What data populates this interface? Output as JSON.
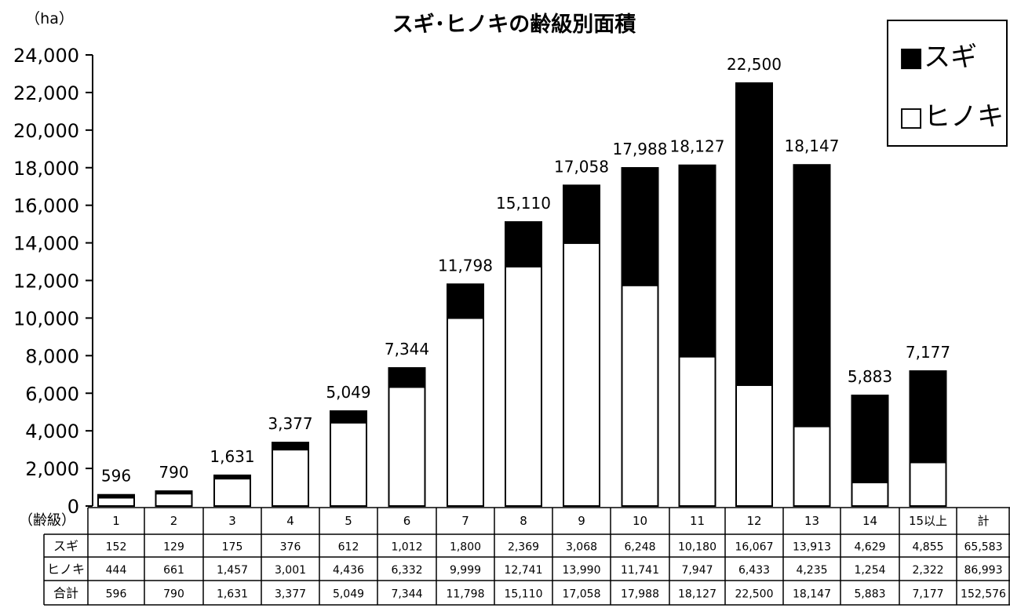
{
  "chart_data": {
    "type": "bar",
    "stacked": true,
    "title": "スギ･ヒノキの齢級別面積",
    "unit_label": "（ha）",
    "categories": [
      "1",
      "2",
      "3",
      "4",
      "5",
      "6",
      "7",
      "8",
      "9",
      "10",
      "11",
      "12",
      "13",
      "14",
      "15以上"
    ],
    "series": [
      {
        "name": "ヒノキ",
        "values": [
          444,
          661,
          1457,
          3001,
          4436,
          6332,
          9999,
          12741,
          13990,
          11741,
          7947,
          6433,
          4235,
          1254,
          2322
        ],
        "color": "#ffffff"
      },
      {
        "name": "スギ",
        "values": [
          152,
          129,
          175,
          376,
          612,
          1012,
          1800,
          2369,
          3068,
          6248,
          10180,
          16067,
          13913,
          4629,
          4855
        ],
        "color": "#000000"
      }
    ],
    "totals": [
      596,
      790,
      1631,
      3377,
      5049,
      7344,
      11798,
      15110,
      17058,
      17988,
      18127,
      22500,
      18147,
      5883,
      7177
    ],
    "total_labels": [
      "596",
      "790",
      "1,631",
      "3,377",
      "5,049",
      "7,344",
      "11,798",
      "15,110",
      "17,058",
      "17,988",
      "18,127",
      "22,500",
      "18,147",
      "5,883",
      "7,177"
    ],
    "ylim": [
      0,
      24000
    ],
    "yticks": [
      "0",
      "2,000",
      "4,000",
      "6,000",
      "8,000",
      "10,000",
      "12,000",
      "14,000",
      "16,000",
      "18,000",
      "20,000",
      "22,000",
      "24,000"
    ],
    "legend": {
      "placement": "top-right",
      "items": [
        "■スギ",
        "□ヒノキ"
      ]
    },
    "grid": false
  },
  "table": {
    "header_label": "（齢級）",
    "columns": [
      "1",
      "2",
      "3",
      "4",
      "5",
      "6",
      "7",
      "8",
      "9",
      "10",
      "11",
      "12",
      "13",
      "14",
      "15以上",
      "計"
    ],
    "rows": [
      {
        "label": "スギ",
        "values": [
          "152",
          "129",
          "175",
          "376",
          "612",
          "1,012",
          "1,800",
          "2,369",
          "3,068",
          "6,248",
          "10,180",
          "16,067",
          "13,913",
          "4,629",
          "4,855",
          "65,583"
        ]
      },
      {
        "label": "ヒノキ",
        "values": [
          "444",
          "661",
          "1,457",
          "3,001",
          "4,436",
          "6,332",
          "9,999",
          "12,741",
          "13,990",
          "11,741",
          "7,947",
          "6,433",
          "4,235",
          "1,254",
          "2,322",
          "86,993"
        ]
      },
      {
        "label": "合計",
        "values": [
          "596",
          "790",
          "1,631",
          "3,377",
          "5,049",
          "7,344",
          "11,798",
          "15,110",
          "17,058",
          "17,988",
          "18,127",
          "22,500",
          "18,147",
          "5,883",
          "7,177",
          "152,576"
        ]
      }
    ]
  }
}
